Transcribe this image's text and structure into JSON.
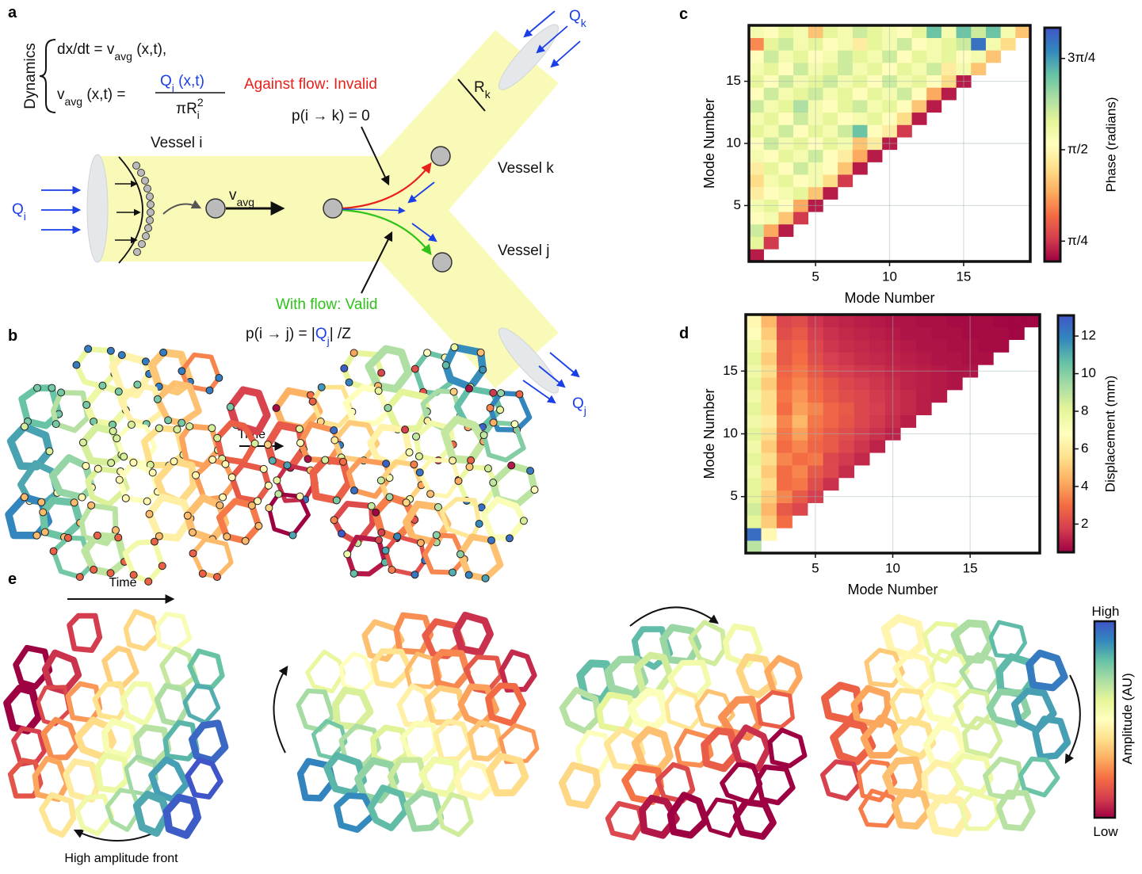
{
  "figure": {
    "panel_labels": [
      "a",
      "b",
      "c",
      "d",
      "e"
    ],
    "a": {
      "dynamics": "Dynamics",
      "eq1": [
        "dx/dt = v",
        "avg",
        " (x,t),"
      ],
      "eq2_lhs": [
        "v",
        "avg",
        " (x,t) = "
      ],
      "eq2_num": [
        "Q",
        "i",
        " (x,t)"
      ],
      "eq2_den": [
        "πR",
        "i",
        "2"
      ],
      "vessel_i": "Vessel i",
      "vessel_k": "Vessel k",
      "vessel_j": "Vessel j",
      "q_i": [
        "Q",
        "i"
      ],
      "q_k": [
        "Q",
        "k"
      ],
      "q_j": [
        "Q",
        "j"
      ],
      "r_k": [
        "R",
        "k"
      ],
      "v_avg": [
        "v",
        "avg"
      ],
      "against": "Against flow: Invalid",
      "p_ik": "p(i → k) = 0",
      "with": "With flow: Valid",
      "p_ij": [
        "p(i → j) = |",
        "Q",
        "j",
        "| /Z"
      ]
    },
    "b": {
      "time": "Time"
    },
    "e": {
      "time": "Time",
      "front": "High amplitude front",
      "colorbar_label": "Amplitude (AU)",
      "high": "High",
      "low": "Low"
    }
  },
  "chart_data": [
    {
      "type": "heatmap",
      "xlabel": "Mode Number",
      "ylabel": "Mode Number",
      "colorbar_label": "Phase (radians)",
      "x": [
        1,
        2,
        3,
        4,
        5,
        6,
        7,
        8,
        9,
        10,
        11,
        12,
        13,
        14,
        15,
        16,
        17,
        18,
        19
      ],
      "y": [
        1,
        2,
        3,
        4,
        5,
        6,
        7,
        8,
        9,
        10,
        11,
        12,
        13,
        14,
        15,
        16,
        17,
        18,
        19
      ],
      "xlim": [
        0.5,
        19.5
      ],
      "ylim": [
        0.5,
        19.5
      ],
      "xticks": [
        5,
        10,
        15
      ],
      "yticks": [
        5,
        10,
        15
      ],
      "grid": true,
      "clim": [
        0.61,
        2.62
      ],
      "cticks": [
        {
          "value": 0.785,
          "label": "π/4"
        },
        {
          "value": 1.571,
          "label": "π/2"
        },
        {
          "value": 2.356,
          "label": "3π/4"
        }
      ],
      "colormap": [
        "#9e0142",
        "#d53e4f",
        "#f46d43",
        "#fdae61",
        "#fee08b",
        "#ffffbf",
        "#e6f598",
        "#abdda4",
        "#66c2a5",
        "#3288bd",
        "#3f55c8"
      ],
      "values": [
        [
          0.7
        ],
        [
          1.8,
          0.8
        ],
        [
          1.9,
          1.2,
          0.7
        ],
        [
          1.6,
          1.7,
          1.3,
          0.8
        ],
        [
          1.7,
          1.8,
          1.6,
          1.2,
          0.7
        ],
        [
          1.5,
          1.6,
          1.7,
          1.8,
          1.3,
          0.7
        ],
        [
          1.4,
          1.7,
          1.8,
          1.6,
          1.7,
          1.4,
          0.8
        ],
        [
          1.5,
          1.8,
          1.6,
          1.9,
          1.7,
          1.6,
          1.3,
          0.7
        ],
        [
          1.7,
          1.6,
          1.8,
          1.7,
          1.9,
          1.6,
          1.5,
          1.2,
          0.7
        ],
        [
          1.6,
          1.9,
          1.7,
          1.8,
          1.6,
          1.8,
          1.7,
          1.3,
          1.5,
          0.7
        ],
        [
          1.8,
          1.7,
          1.9,
          1.6,
          1.8,
          1.7,
          1.9,
          2.2,
          1.6,
          1.5,
          0.8
        ],
        [
          1.7,
          1.8,
          1.6,
          1.9,
          1.7,
          1.8,
          1.6,
          1.7,
          1.8,
          1.6,
          1.4,
          0.7
        ],
        [
          1.9,
          1.7,
          1.8,
          2.0,
          1.7,
          1.6,
          1.8,
          1.9,
          1.7,
          1.8,
          1.6,
          1.3,
          0.7
        ],
        [
          1.6,
          1.9,
          1.7,
          1.8,
          1.9,
          1.7,
          1.8,
          1.6,
          1.8,
          1.7,
          1.9,
          1.6,
          1.2,
          0.7
        ],
        [
          1.8,
          1.6,
          1.9,
          1.7,
          1.8,
          1.9,
          1.7,
          1.8,
          1.6,
          1.9,
          1.7,
          1.8,
          1.6,
          1.4,
          0.7
        ],
        [
          1.7,
          1.8,
          1.6,
          1.9,
          1.7,
          1.8,
          1.9,
          1.7,
          1.8,
          1.6,
          1.8,
          1.7,
          1.9,
          1.5,
          1.7,
          1.3
        ],
        [
          1.6,
          1.9,
          1.7,
          1.8,
          1.6,
          1.7,
          1.9,
          1.8,
          1.7,
          1.9,
          1.6,
          1.8,
          1.7,
          1.8,
          1.6,
          1.7,
          1.3
        ],
        [
          1.1,
          1.8,
          1.9,
          1.7,
          1.8,
          1.6,
          1.7,
          1.5,
          1.8,
          1.7,
          1.9,
          1.6,
          1.7,
          1.8,
          1.9,
          2.5,
          1.7,
          1.4
        ],
        [
          1.7,
          1.6,
          1.8,
          1.7,
          1.3,
          1.8,
          1.7,
          1.9,
          1.8,
          1.7,
          1.6,
          1.8,
          2.2,
          1.7,
          2.2,
          1.9,
          2.2,
          1.7,
          1.3
        ]
      ]
    },
    {
      "type": "heatmap",
      "xlabel": "Mode Number",
      "ylabel": "Mode Number",
      "colorbar_label": "Displacement (mm)",
      "x": [
        1,
        2,
        3,
        4,
        5,
        6,
        7,
        8,
        9,
        10,
        11,
        12,
        13,
        14,
        15,
        16,
        17,
        18,
        19
      ],
      "y": [
        1,
        2,
        3,
        4,
        5,
        6,
        7,
        8,
        9,
        10,
        11,
        12,
        13,
        14,
        15,
        16,
        17,
        18,
        19
      ],
      "xlim": [
        0.5,
        19.5
      ],
      "ylim": [
        0.5,
        19.5
      ],
      "xticks": [
        5,
        10,
        15
      ],
      "yticks": [
        5,
        10,
        15
      ],
      "grid": true,
      "clim": [
        0.5,
        13.1
      ],
      "cticks": [
        2,
        4,
        6,
        8,
        10,
        12
      ],
      "colormap": [
        "#9e0142",
        "#d53e4f",
        "#f46d43",
        "#fdae61",
        "#fee08b",
        "#ffffbf",
        "#e6f598",
        "#abdda4",
        "#66c2a5",
        "#3288bd",
        "#3f55c8"
      ],
      "values": [
        [
          9
        ],
        [
          12.5,
          6.5
        ],
        [
          8,
          5,
          3
        ],
        [
          8.5,
          4.5,
          2.5,
          2
        ],
        [
          8,
          5,
          3.5,
          2.5,
          1.8
        ],
        [
          8,
          5.5,
          3,
          3.2,
          2.2,
          1.5
        ],
        [
          7.5,
          5,
          3,
          3.5,
          2.5,
          2,
          1.4
        ],
        [
          8,
          5.5,
          3.5,
          3,
          3.2,
          2,
          1.7,
          1.3
        ],
        [
          7.5,
          5,
          3,
          3.5,
          2.8,
          2.5,
          2,
          1.6,
          1.2
        ],
        [
          8,
          5.5,
          3.2,
          4,
          3,
          2.5,
          2.2,
          1.8,
          1.5,
          1.2
        ],
        [
          7.5,
          6,
          3.5,
          4.5,
          3.2,
          2.8,
          2.4,
          2,
          1.7,
          1.4,
          1.1
        ],
        [
          8,
          5.5,
          3,
          4,
          3.5,
          2.8,
          2.5,
          2,
          1.8,
          1.5,
          1.3,
          1.1
        ],
        [
          7.5,
          5.5,
          3.2,
          3.8,
          3,
          2.5,
          2.2,
          2,
          1.7,
          1.5,
          1.3,
          1.1,
          1
        ],
        [
          8,
          5,
          3,
          3.5,
          2.8,
          2.4,
          2,
          1.8,
          1.6,
          1.4,
          1.2,
          1.1,
          1,
          0.9
        ],
        [
          7.5,
          5.5,
          2.8,
          3.2,
          2.5,
          2,
          1.8,
          1.6,
          1.5,
          1.3,
          1.2,
          1.1,
          1,
          0.9,
          0.9
        ],
        [
          8,
          5,
          2.5,
          3,
          2.2,
          1.8,
          1.6,
          1.4,
          1.3,
          1.2,
          1.1,
          1,
          0.9,
          0.9,
          0.8,
          0.8
        ],
        [
          7.5,
          5.5,
          2.5,
          2.8,
          2,
          1.6,
          1.4,
          1.3,
          1.2,
          1.1,
          1,
          0.9,
          0.9,
          0.8,
          0.8,
          0.7,
          0.7
        ],
        [
          7,
          5,
          2.2,
          2.5,
          1.8,
          1.5,
          1.3,
          1.2,
          1.1,
          1,
          0.9,
          0.9,
          0.8,
          0.8,
          0.7,
          0.7,
          0.7,
          0.6
        ],
        [
          6.5,
          4.5,
          2,
          2.2,
          1.6,
          1.3,
          1.2,
          1.1,
          1,
          0.9,
          0.9,
          0.8,
          0.8,
          0.7,
          0.7,
          0.7,
          0.6,
          0.6,
          0.6
        ]
      ]
    }
  ]
}
